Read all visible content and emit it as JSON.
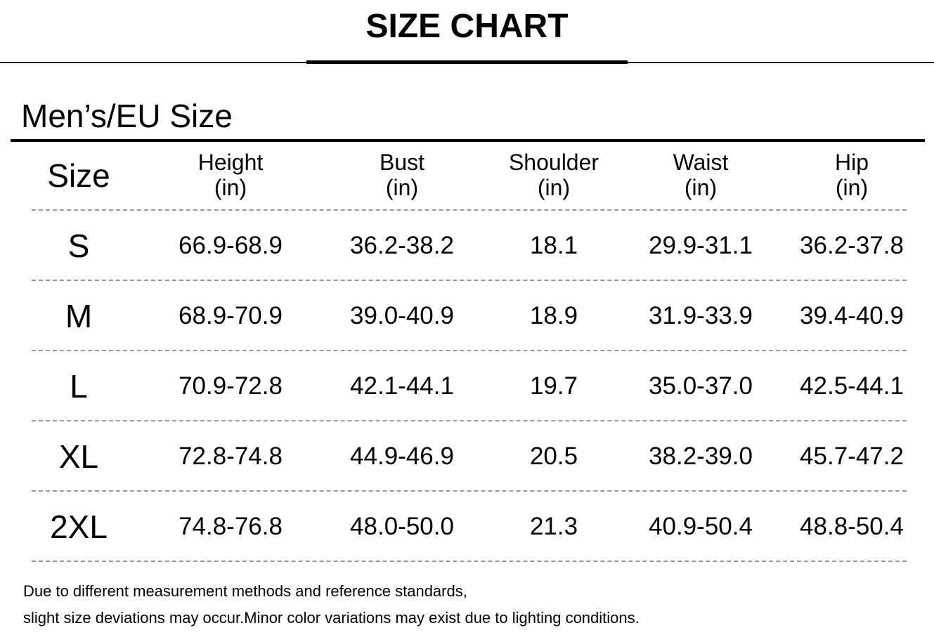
{
  "header": {
    "title": "SIZE CHART",
    "subtitle": "Men’s/EU Size"
  },
  "table": {
    "columns": [
      {
        "name": "Size"
      },
      {
        "name": "Height",
        "unit": "(in)"
      },
      {
        "name": "Bust",
        "unit": "(in)"
      },
      {
        "name": "Shoulder",
        "unit": "(in)"
      },
      {
        "name": "Waist",
        "unit": "(in)"
      },
      {
        "name": "Hip",
        "unit": "(in)"
      }
    ],
    "rows": [
      [
        "S",
        "66.9-68.9",
        "36.2-38.2",
        "18.1",
        "29.9-31.1",
        "36.2-37.8"
      ],
      [
        "M",
        "68.9-70.9",
        "39.0-40.9",
        "18.9",
        "31.9-33.9",
        "39.4-40.9"
      ],
      [
        "L",
        "70.9-72.8",
        "42.1-44.1",
        "19.7",
        "35.0-37.0",
        "42.5-44.1"
      ],
      [
        "XL",
        "72.8-74.8",
        "44.9-46.9",
        "20.5",
        "38.2-39.0",
        "45.7-47.2"
      ],
      [
        "2XL",
        "74.8-76.8",
        "48.0-50.0",
        "21.3",
        "40.9-50.4",
        "48.8-50.4"
      ]
    ]
  },
  "notes": [
    "Due to different measurement methods and reference standards,",
    "slight size deviations may occur.Minor color variations may exist due to lighting conditions."
  ]
}
